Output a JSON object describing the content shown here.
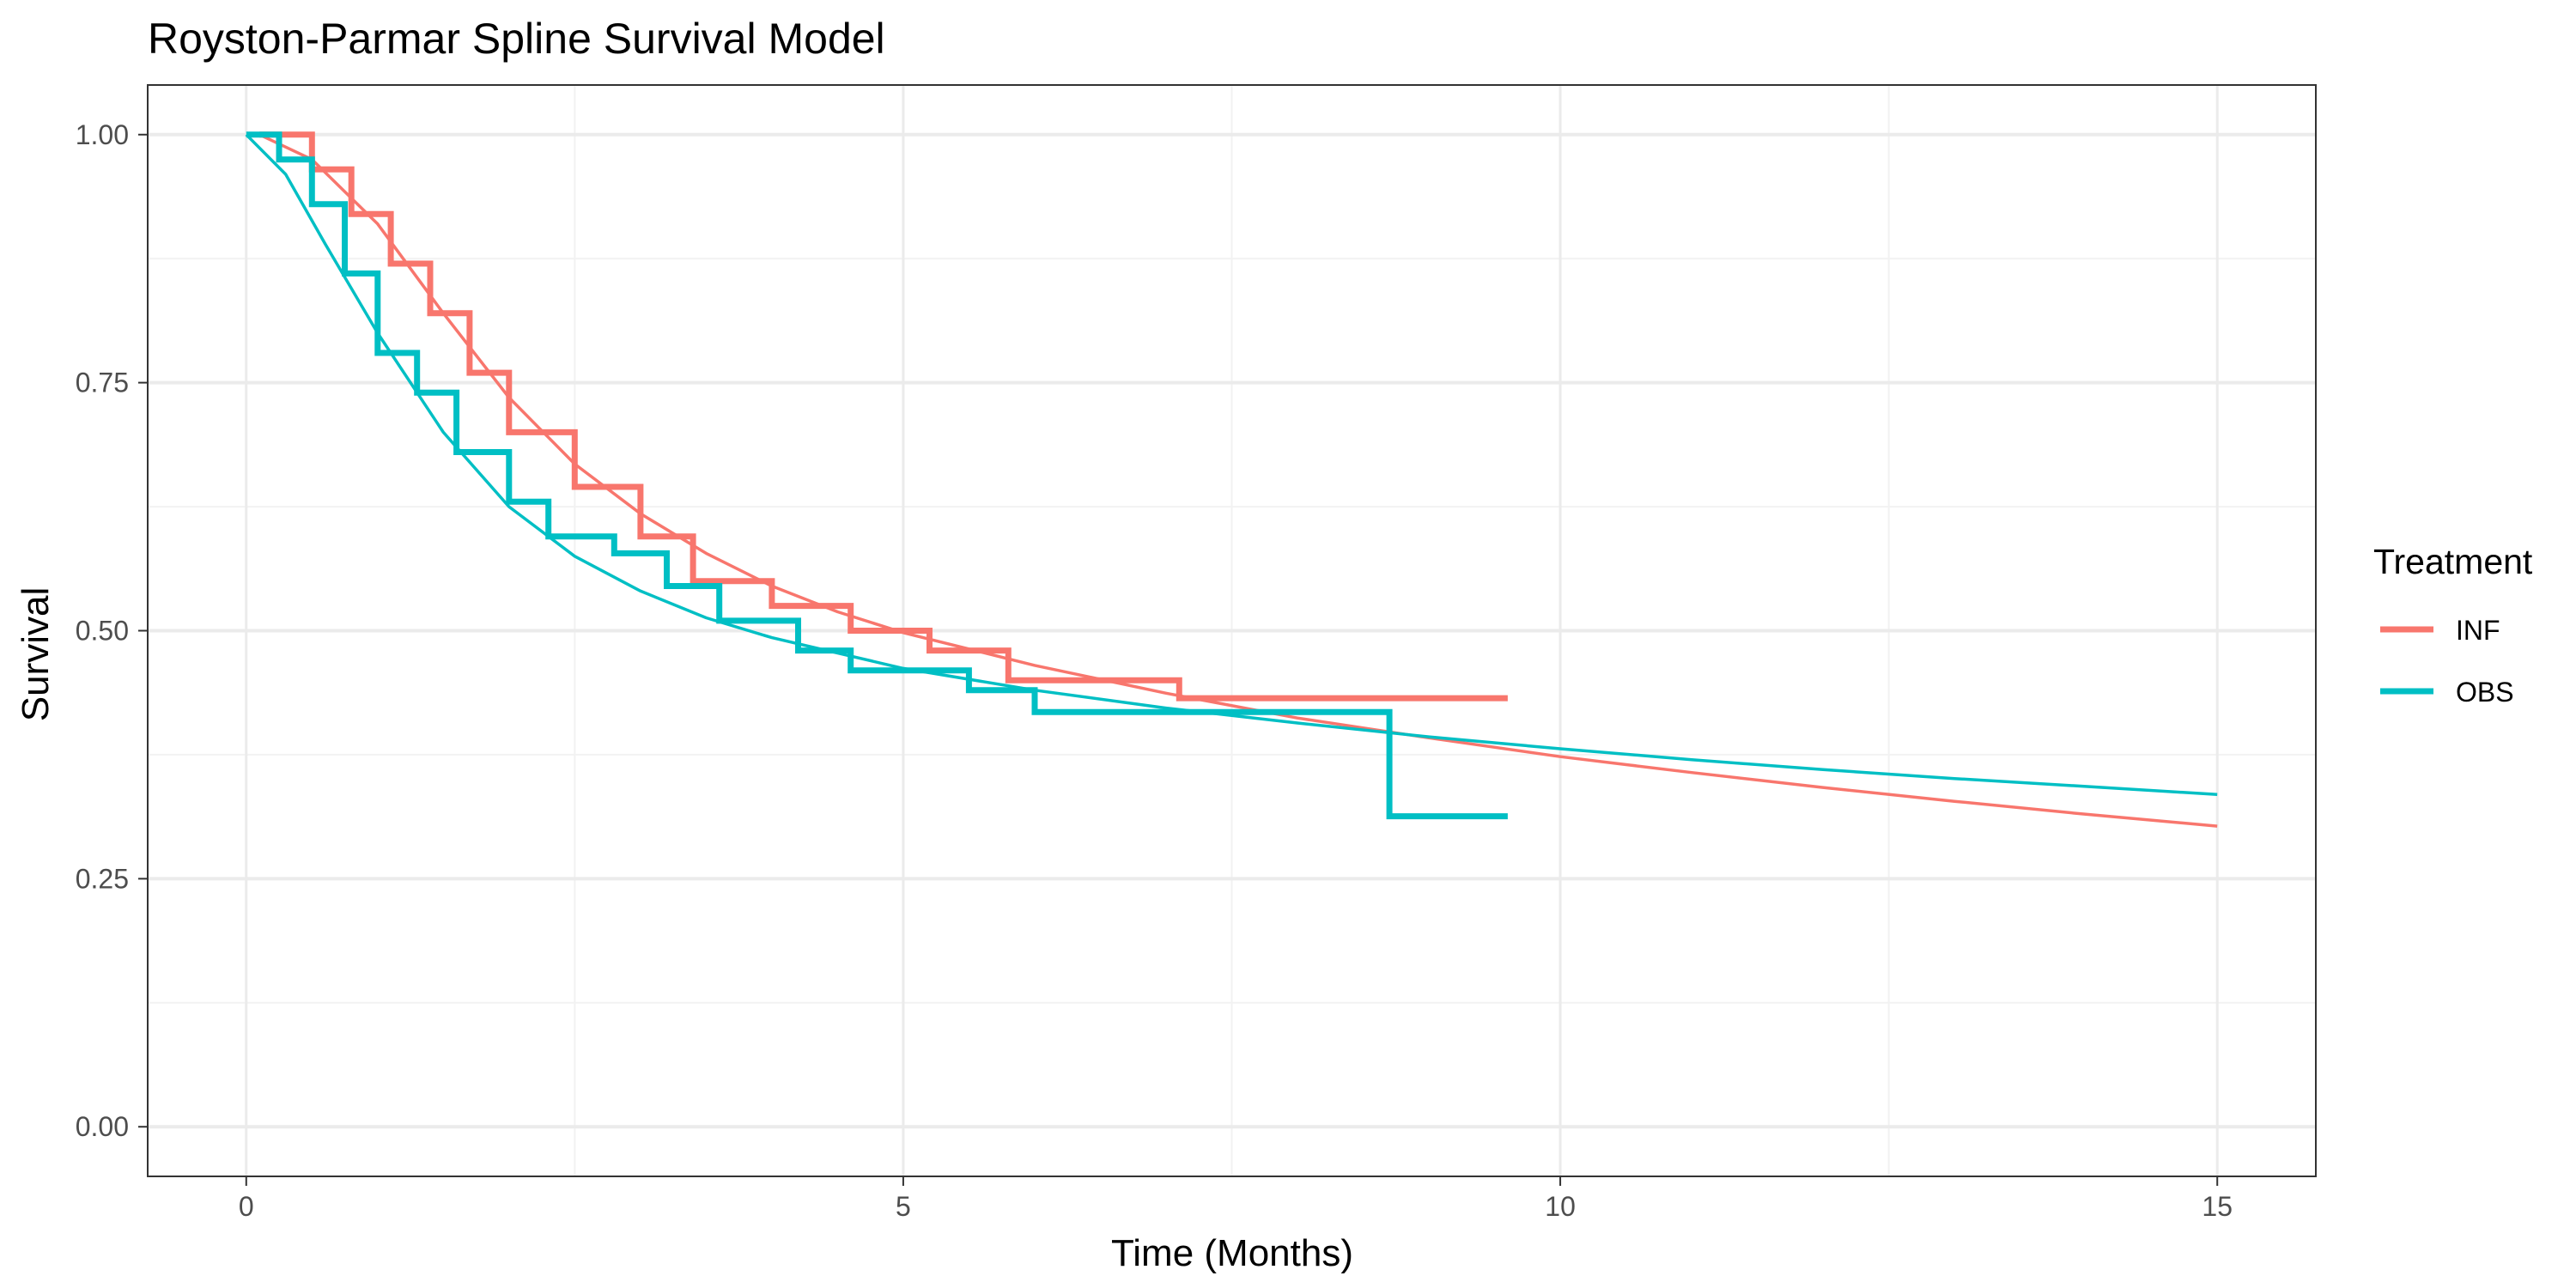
{
  "chart_data": {
    "type": "line",
    "title": "Royston-Parmar Spline Survival Model",
    "xlabel": "Time (Months)",
    "ylabel": "Survival",
    "xlim": [
      -0.75,
      15.75
    ],
    "ylim": [
      -0.05,
      1.05
    ],
    "x_ticks": [
      0,
      5,
      10,
      15
    ],
    "x_tick_labels": [
      "0",
      "5",
      "10",
      "15"
    ],
    "y_ticks": [
      0,
      0.25,
      0.5,
      0.75,
      1
    ],
    "y_tick_labels": [
      "0.00",
      "0.25",
      "0.50",
      "0.75",
      "1.00"
    ],
    "grid": true,
    "legend": {
      "title": "Treatment",
      "position": "right",
      "entries": [
        "INF",
        "OBS"
      ]
    },
    "series": [
      {
        "name": "INF",
        "color": "#F8766D",
        "km_steps": [
          [
            0.1,
            1.0
          ],
          [
            0.5,
            0.965
          ],
          [
            0.8,
            0.92
          ],
          [
            1.1,
            0.87
          ],
          [
            1.4,
            0.82
          ],
          [
            1.7,
            0.76
          ],
          [
            2.0,
            0.7
          ],
          [
            2.5,
            0.645
          ],
          [
            3.0,
            0.595
          ],
          [
            3.4,
            0.55
          ],
          [
            4.0,
            0.525
          ],
          [
            4.6,
            0.5
          ],
          [
            5.2,
            0.48
          ],
          [
            5.8,
            0.45
          ],
          [
            7.1,
            0.432
          ],
          [
            9.6,
            0.432
          ]
        ],
        "fit": [
          [
            0.1,
            1.0
          ],
          [
            0.5,
            0.975
          ],
          [
            1.0,
            0.91
          ],
          [
            1.5,
            0.82
          ],
          [
            2.0,
            0.735
          ],
          [
            2.5,
            0.668
          ],
          [
            3.0,
            0.618
          ],
          [
            3.5,
            0.578
          ],
          [
            4.0,
            0.545
          ],
          [
            4.5,
            0.519
          ],
          [
            5.0,
            0.498
          ],
          [
            6.0,
            0.465
          ],
          [
            7.0,
            0.437
          ],
          [
            8.0,
            0.412
          ],
          [
            9.0,
            0.392
          ],
          [
            10.0,
            0.373
          ],
          [
            11.0,
            0.357
          ],
          [
            12.0,
            0.342
          ],
          [
            13.0,
            0.328
          ],
          [
            14.0,
            0.315
          ],
          [
            15.0,
            0.303
          ]
        ]
      },
      {
        "name": "OBS",
        "color": "#00BFC4",
        "km_steps": [
          [
            0,
            1.0
          ],
          [
            0.25,
            0.975
          ],
          [
            0.5,
            0.93
          ],
          [
            0.75,
            0.86
          ],
          [
            1.0,
            0.78
          ],
          [
            1.3,
            0.74
          ],
          [
            1.6,
            0.68
          ],
          [
            2.0,
            0.63
          ],
          [
            2.3,
            0.595
          ],
          [
            2.8,
            0.578
          ],
          [
            3.2,
            0.545
          ],
          [
            3.6,
            0.51
          ],
          [
            4.2,
            0.48
          ],
          [
            4.6,
            0.46
          ],
          [
            5.5,
            0.44
          ],
          [
            6.0,
            0.418
          ],
          [
            8.7,
            0.313
          ],
          [
            9.6,
            0.313
          ]
        ],
        "fit": [
          [
            0,
            1.0
          ],
          [
            0.3,
            0.96
          ],
          [
            0.6,
            0.89
          ],
          [
            1.0,
            0.8
          ],
          [
            1.5,
            0.7
          ],
          [
            2.0,
            0.625
          ],
          [
            2.5,
            0.575
          ],
          [
            3.0,
            0.54
          ],
          [
            3.5,
            0.513
          ],
          [
            4.0,
            0.493
          ],
          [
            5.0,
            0.462
          ],
          [
            6.0,
            0.44
          ],
          [
            7.0,
            0.422
          ],
          [
            8.0,
            0.407
          ],
          [
            9.0,
            0.393
          ],
          [
            10.0,
            0.381
          ],
          [
            11.0,
            0.37
          ],
          [
            12.0,
            0.36
          ],
          [
            13.0,
            0.351
          ],
          [
            14.0,
            0.343
          ],
          [
            15.0,
            0.335
          ]
        ]
      }
    ]
  }
}
